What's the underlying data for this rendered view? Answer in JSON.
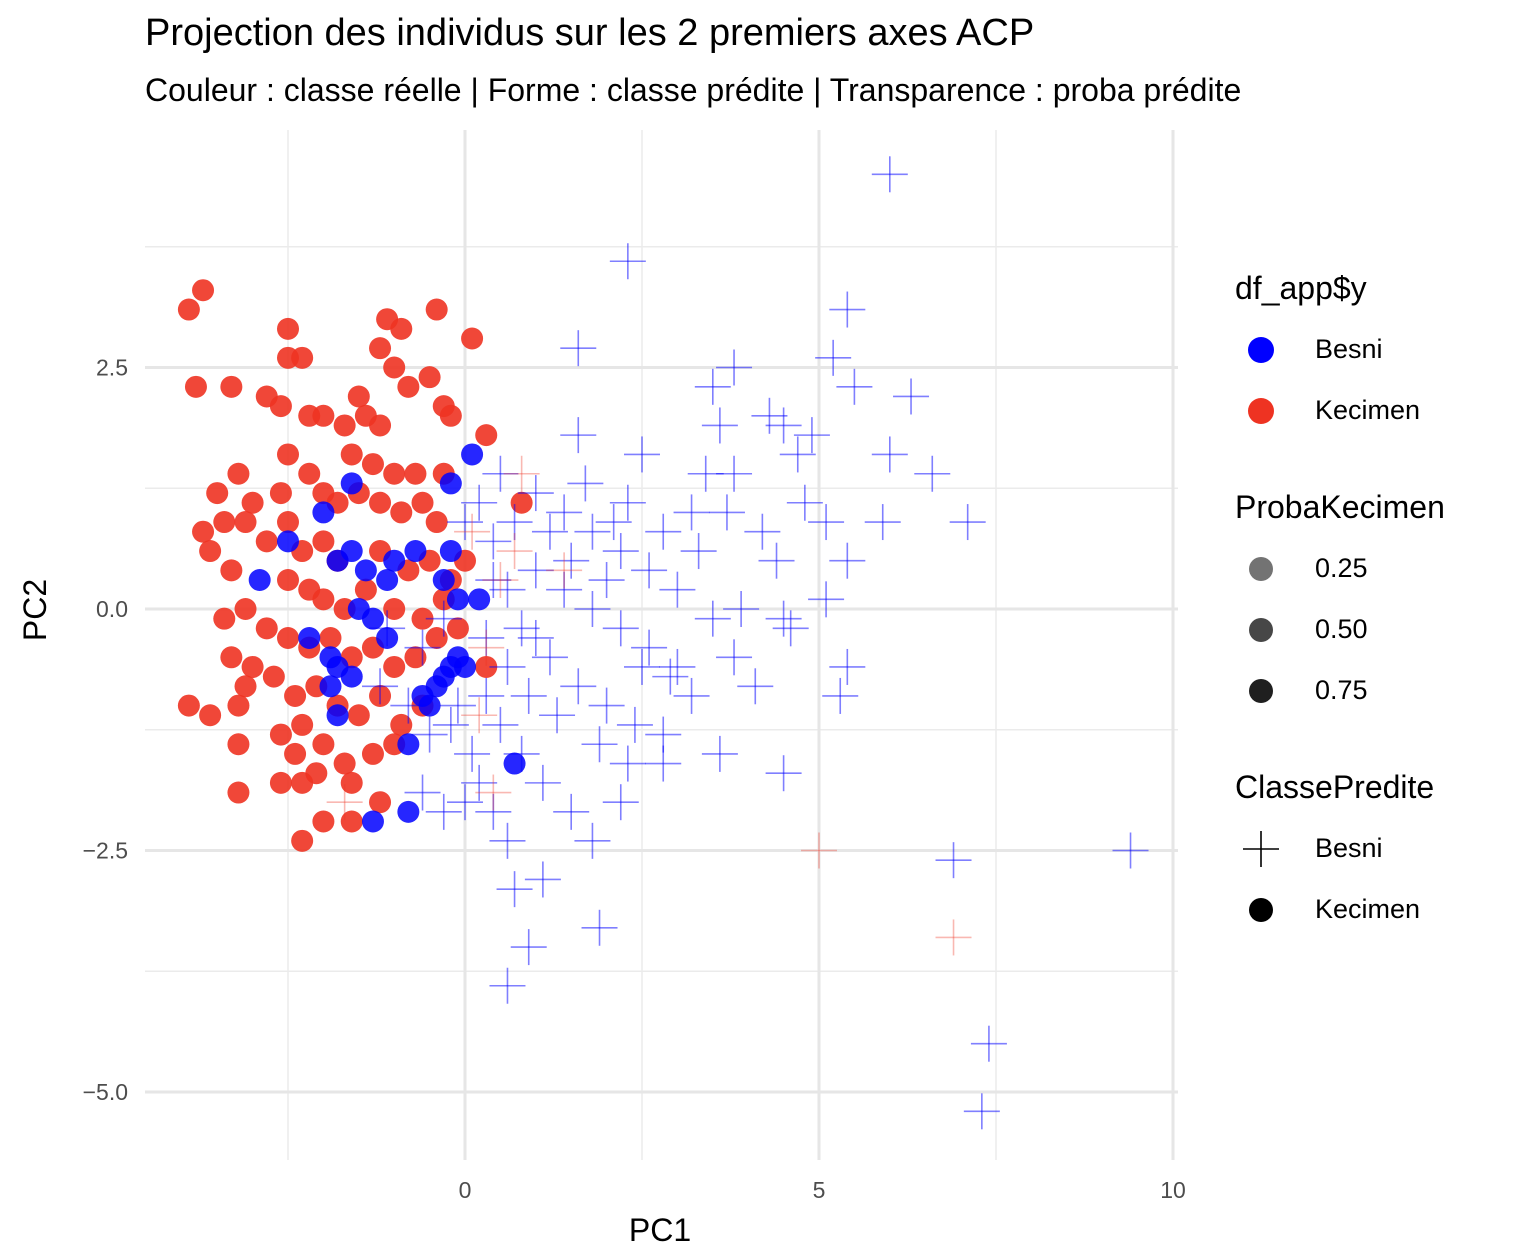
{
  "chart_data": {
    "type": "scatter",
    "title": "Projection des individus sur les 2 premiers axes ACP",
    "subtitle": "Couleur : classe réelle | Forme : classe prédite | Transparence : proba prédite",
    "xlabel": "PC1",
    "ylabel": "PC2",
    "xlim": [
      -4.6,
      10.2
    ],
    "ylim": [
      -5.5,
      4.8
    ],
    "x_ticks": [
      0,
      5,
      10
    ],
    "x_tick_labels": [
      "0",
      "5",
      "10"
    ],
    "y_ticks": [
      -5.0,
      -2.5,
      0.0,
      2.5
    ],
    "y_tick_labels": [
      "−5.0",
      "−2.5",
      "0.0",
      "2.5"
    ],
    "grid": true,
    "colors": {
      "Besni": "#0000ff",
      "Kecimen": "#ee3322"
    },
    "legend": {
      "color": {
        "title": "df_app$y",
        "items": [
          "Besni",
          "Kecimen"
        ]
      },
      "alpha": {
        "title": "ProbaKecimen",
        "items": [
          "0.25",
          "0.50",
          "0.75"
        ]
      },
      "shape": {
        "title": "ClassePredite",
        "items": [
          "Besni",
          "Kecimen"
        ]
      }
    },
    "series": [
      {
        "name": "Kecimen",
        "predicted": "Kecimen",
        "points": [
          [
            -3.7,
            3.3
          ],
          [
            -3.9,
            3.1
          ],
          [
            -3.8,
            2.3
          ],
          [
            -3.3,
            2.3
          ],
          [
            -2.5,
            2.9
          ],
          [
            -2.5,
            2.6
          ],
          [
            -2.3,
            2.6
          ],
          [
            -2.8,
            2.2
          ],
          [
            -2.6,
            2.1
          ],
          [
            -2.2,
            2.0
          ],
          [
            -2.0,
            2.0
          ],
          [
            -1.7,
            1.9
          ],
          [
            -1.2,
            2.7
          ],
          [
            -1.1,
            3.0
          ],
          [
            -0.9,
            2.9
          ],
          [
            -1.5,
            2.2
          ],
          [
            -1.4,
            2.0
          ],
          [
            -1.2,
            1.9
          ],
          [
            -1.0,
            2.5
          ],
          [
            -0.8,
            2.3
          ],
          [
            -0.5,
            2.4
          ],
          [
            -0.3,
            2.1
          ],
          [
            -0.4,
            3.1
          ],
          [
            0.1,
            2.8
          ],
          [
            -0.2,
            2.0
          ],
          [
            0.3,
            1.8
          ],
          [
            -1.6,
            1.6
          ],
          [
            -1.3,
            1.5
          ],
          [
            -1.0,
            1.4
          ],
          [
            -0.7,
            1.4
          ],
          [
            -0.3,
            1.4
          ],
          [
            -2.5,
            1.6
          ],
          [
            -2.2,
            1.4
          ],
          [
            -3.2,
            1.4
          ],
          [
            -3.5,
            1.2
          ],
          [
            -3.0,
            1.1
          ],
          [
            -2.6,
            1.2
          ],
          [
            -3.4,
            0.9
          ],
          [
            -3.1,
            0.9
          ],
          [
            -2.8,
            0.7
          ],
          [
            -2.5,
            0.9
          ],
          [
            -3.7,
            0.8
          ],
          [
            -3.6,
            0.6
          ],
          [
            -3.3,
            0.4
          ],
          [
            -2.0,
            1.2
          ],
          [
            -1.8,
            1.1
          ],
          [
            -1.5,
            1.2
          ],
          [
            -1.2,
            1.1
          ],
          [
            -0.9,
            1.0
          ],
          [
            -0.6,
            1.1
          ],
          [
            -0.4,
            0.9
          ],
          [
            -2.3,
            0.6
          ],
          [
            -2.0,
            0.7
          ],
          [
            -1.8,
            0.5
          ],
          [
            -1.2,
            0.6
          ],
          [
            -0.8,
            0.4
          ],
          [
            -0.5,
            0.5
          ],
          [
            -0.2,
            0.3
          ],
          [
            -2.5,
            0.3
          ],
          [
            -2.2,
            0.2
          ],
          [
            -2.0,
            0.1
          ],
          [
            -1.7,
            0.0
          ],
          [
            -1.4,
            0.2
          ],
          [
            -1.0,
            0.0
          ],
          [
            -0.6,
            -0.1
          ],
          [
            -0.3,
            0.1
          ],
          [
            -3.4,
            -0.1
          ],
          [
            -3.1,
            0.0
          ],
          [
            -2.8,
            -0.2
          ],
          [
            -2.5,
            -0.3
          ],
          [
            -2.2,
            -0.4
          ],
          [
            -1.9,
            -0.3
          ],
          [
            -1.6,
            -0.5
          ],
          [
            -1.3,
            -0.4
          ],
          [
            -1.0,
            -0.6
          ],
          [
            -0.7,
            -0.5
          ],
          [
            -0.4,
            -0.3
          ],
          [
            -3.3,
            -0.5
          ],
          [
            -3.0,
            -0.6
          ],
          [
            -2.7,
            -0.7
          ],
          [
            -2.4,
            -0.9
          ],
          [
            -2.1,
            -0.8
          ],
          [
            -1.8,
            -1.0
          ],
          [
            -1.5,
            -1.1
          ],
          [
            -1.2,
            -0.9
          ],
          [
            -0.9,
            -1.2
          ],
          [
            -3.9,
            -1.0
          ],
          [
            -3.6,
            -1.1
          ],
          [
            -3.2,
            -1.0
          ],
          [
            -3.1,
            -0.8
          ],
          [
            -2.6,
            -1.3
          ],
          [
            -2.3,
            -1.2
          ],
          [
            -2.0,
            -1.4
          ],
          [
            -1.7,
            -1.6
          ],
          [
            -1.3,
            -1.5
          ],
          [
            -1.0,
            -1.4
          ],
          [
            -3.2,
            -1.4
          ],
          [
            -2.4,
            -1.5
          ],
          [
            -2.1,
            -1.7
          ],
          [
            -1.6,
            -1.8
          ],
          [
            -1.2,
            -2.0
          ],
          [
            -3.2,
            -1.9
          ],
          [
            -2.6,
            -1.8
          ],
          [
            -2.3,
            -1.8
          ],
          [
            -2.0,
            -2.2
          ],
          [
            -1.6,
            -2.2
          ],
          [
            -2.3,
            -2.4
          ],
          [
            -0.6,
            -1.0
          ],
          [
            0.3,
            -0.6
          ],
          [
            0.8,
            1.1
          ],
          [
            0.0,
            0.5
          ],
          [
            -0.1,
            -0.2
          ]
        ]
      },
      {
        "name": "Besni",
        "predicted": "Kecimen",
        "points": [
          [
            -2.0,
            1.0
          ],
          [
            -2.5,
            0.7
          ],
          [
            -2.9,
            0.3
          ],
          [
            -1.6,
            1.3
          ],
          [
            -1.6,
            0.6
          ],
          [
            -1.8,
            0.5
          ],
          [
            -1.4,
            0.4
          ],
          [
            -1.0,
            0.5
          ],
          [
            -0.7,
            0.6
          ],
          [
            -1.1,
            0.3
          ],
          [
            -1.5,
            0.0
          ],
          [
            -1.3,
            -0.1
          ],
          [
            -1.1,
            -0.3
          ],
          [
            -2.2,
            -0.3
          ],
          [
            -1.9,
            -0.5
          ],
          [
            -1.8,
            -0.6
          ],
          [
            -1.9,
            -0.8
          ],
          [
            -1.6,
            -0.7
          ],
          [
            -1.8,
            -1.1
          ],
          [
            -0.8,
            -1.4
          ],
          [
            -1.3,
            -2.2
          ],
          [
            -0.8,
            -2.1
          ],
          [
            -0.6,
            -0.9
          ],
          [
            -0.5,
            -1.0
          ],
          [
            -0.4,
            -0.8
          ],
          [
            -0.3,
            -0.7
          ],
          [
            -0.2,
            -0.6
          ],
          [
            -0.1,
            -0.5
          ],
          [
            0.0,
            -0.6
          ],
          [
            0.1,
            1.6
          ],
          [
            -0.2,
            1.3
          ],
          [
            -0.2,
            0.6
          ],
          [
            -0.3,
            0.3
          ],
          [
            -0.1,
            0.1
          ],
          [
            0.2,
            0.1
          ],
          [
            0.7,
            -1.6
          ]
        ]
      },
      {
        "name": "Besni",
        "predicted": "Besni",
        "points": [
          [
            6.0,
            4.5
          ],
          [
            2.3,
            3.6
          ],
          [
            5.4,
            3.1
          ],
          [
            5.2,
            2.6
          ],
          [
            5.5,
            2.3
          ],
          [
            6.3,
            2.2
          ],
          [
            3.8,
            2.5
          ],
          [
            3.5,
            2.3
          ],
          [
            4.3,
            2.0
          ],
          [
            4.5,
            1.9
          ],
          [
            4.9,
            1.8
          ],
          [
            3.6,
            1.9
          ],
          [
            6.0,
            1.6
          ],
          [
            6.6,
            1.4
          ],
          [
            7.1,
            0.9
          ],
          [
            1.6,
            2.7
          ],
          [
            1.6,
            1.8
          ],
          [
            2.3,
            1.1
          ],
          [
            3.4,
            1.4
          ],
          [
            3.8,
            1.4
          ],
          [
            4.7,
            1.6
          ],
          [
            5.1,
            0.9
          ],
          [
            5.9,
            0.9
          ],
          [
            4.2,
            0.8
          ],
          [
            4.4,
            0.5
          ],
          [
            5.4,
            0.5
          ],
          [
            5.1,
            0.1
          ],
          [
            4.5,
            -0.1
          ],
          [
            4.6,
            -0.2
          ],
          [
            5.4,
            -0.6
          ],
          [
            5.3,
            -0.9
          ],
          [
            3.8,
            -0.5
          ],
          [
            3.2,
            -0.9
          ],
          [
            4.5,
            -1.7
          ],
          [
            3.6,
            -1.5
          ],
          [
            2.8,
            -1.3
          ],
          [
            2.3,
            -1.6
          ],
          [
            2.2,
            -2.0
          ],
          [
            1.8,
            -2.4
          ],
          [
            1.9,
            -3.3
          ],
          [
            1.1,
            -2.8
          ],
          [
            0.7,
            -2.9
          ],
          [
            0.9,
            -3.5
          ],
          [
            0.6,
            -3.9
          ],
          [
            6.9,
            -2.6
          ],
          [
            9.4,
            -2.5
          ],
          [
            7.4,
            -4.5
          ],
          [
            7.3,
            -5.2
          ],
          [
            0.5,
            1.4
          ],
          [
            1.0,
            1.2
          ],
          [
            1.4,
            1.0
          ],
          [
            1.8,
            0.8
          ],
          [
            2.2,
            0.6
          ],
          [
            2.6,
            0.4
          ],
          [
            3.0,
            0.2
          ],
          [
            1.0,
            0.4
          ],
          [
            1.4,
            0.2
          ],
          [
            1.8,
            0.0
          ],
          [
            2.2,
            -0.2
          ],
          [
            2.6,
            -0.4
          ],
          [
            3.0,
            -0.6
          ],
          [
            0.4,
            0.7
          ],
          [
            0.6,
            0.2
          ],
          [
            0.8,
            -0.2
          ],
          [
            1.2,
            -0.5
          ],
          [
            1.6,
            -0.8
          ],
          [
            2.0,
            -1.0
          ],
          [
            2.4,
            -1.2
          ],
          [
            0.3,
            -0.9
          ],
          [
            0.5,
            -1.2
          ],
          [
            0.8,
            -1.5
          ],
          [
            1.1,
            -1.8
          ],
          [
            1.5,
            -2.1
          ],
          [
            0.2,
            -1.8
          ],
          [
            0.0,
            -2.0
          ],
          [
            -0.3,
            -2.1
          ],
          [
            -0.6,
            -1.9
          ],
          [
            0.4,
            -2.1
          ],
          [
            1.2,
            0.8
          ],
          [
            1.5,
            0.5
          ],
          [
            2.0,
            0.3
          ],
          [
            2.8,
            0.8
          ],
          [
            3.3,
            0.6
          ],
          [
            3.5,
            -0.1
          ],
          [
            2.9,
            -0.7
          ],
          [
            1.3,
            -1.1
          ],
          [
            0.7,
            0.9
          ],
          [
            0.2,
            1.1
          ],
          [
            0.4,
            0.3
          ],
          [
            0.6,
            -0.6
          ],
          [
            0.9,
            -0.9
          ],
          [
            -0.2,
            -1.2
          ],
          [
            0.1,
            -1.5
          ],
          [
            -0.5,
            -1.3
          ],
          [
            -0.1,
            -1.0
          ],
          [
            -0.6,
            -0.4
          ],
          [
            -0.3,
            -0.1
          ],
          [
            0.0,
            0.9
          ],
          [
            0.3,
            -0.3
          ],
          [
            2.5,
            -0.6
          ],
          [
            2.1,
            0.9
          ],
          [
            3.9,
            0.0
          ],
          [
            4.1,
            -0.8
          ],
          [
            1.7,
            1.3
          ],
          [
            2.8,
            -1.6
          ],
          [
            1.0,
            -0.3
          ],
          [
            0.6,
            -2.4
          ],
          [
            1.9,
            -1.4
          ],
          [
            3.2,
            1.0
          ],
          [
            4.8,
            1.1
          ],
          [
            3.7,
            1.0
          ],
          [
            2.5,
            1.6
          ],
          [
            -1.2,
            -0.8
          ],
          [
            -1.1,
            -0.2
          ],
          [
            -0.8,
            -1.0
          ]
        ]
      },
      {
        "name": "Kecimen",
        "predicted": "Besni",
        "points": [
          [
            5.0,
            -2.5
          ],
          [
            6.9,
            -3.4
          ],
          [
            0.8,
            1.4
          ],
          [
            0.5,
            0.3
          ],
          [
            0.3,
            -0.4
          ],
          [
            0.2,
            -1.1
          ],
          [
            0.4,
            -1.9
          ],
          [
            0.7,
            0.6
          ],
          [
            1.4,
            0.4
          ],
          [
            -1.7,
            -2.0
          ],
          [
            0.1,
            0.8
          ]
        ]
      }
    ]
  }
}
